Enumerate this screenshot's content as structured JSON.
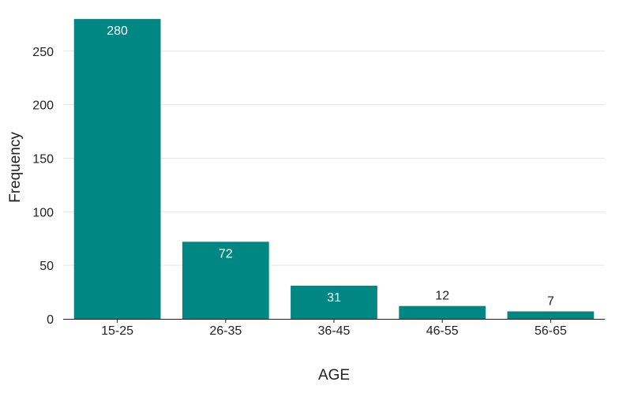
{
  "chart_data": {
    "type": "bar",
    "categories": [
      "15-25",
      "26-35",
      "36-45",
      "46-55",
      "56-65"
    ],
    "values": [
      280,
      72,
      31,
      12,
      7
    ],
    "data_labels": [
      "280",
      "72",
      "31",
      "12",
      "7"
    ],
    "title": "",
    "xlabel": "AGE",
    "ylabel": "Frequency",
    "ylim": [
      0,
      283
    ],
    "yticks": [
      0,
      50,
      100,
      150,
      200,
      250
    ],
    "ytick_labels": [
      "0",
      "50",
      "100",
      "150",
      "200",
      "250"
    ],
    "grid": "horizontal",
    "legend": "none",
    "bar_color": "#008783",
    "grid_color": "#e6e6e6",
    "axis_color": "#222222"
  }
}
